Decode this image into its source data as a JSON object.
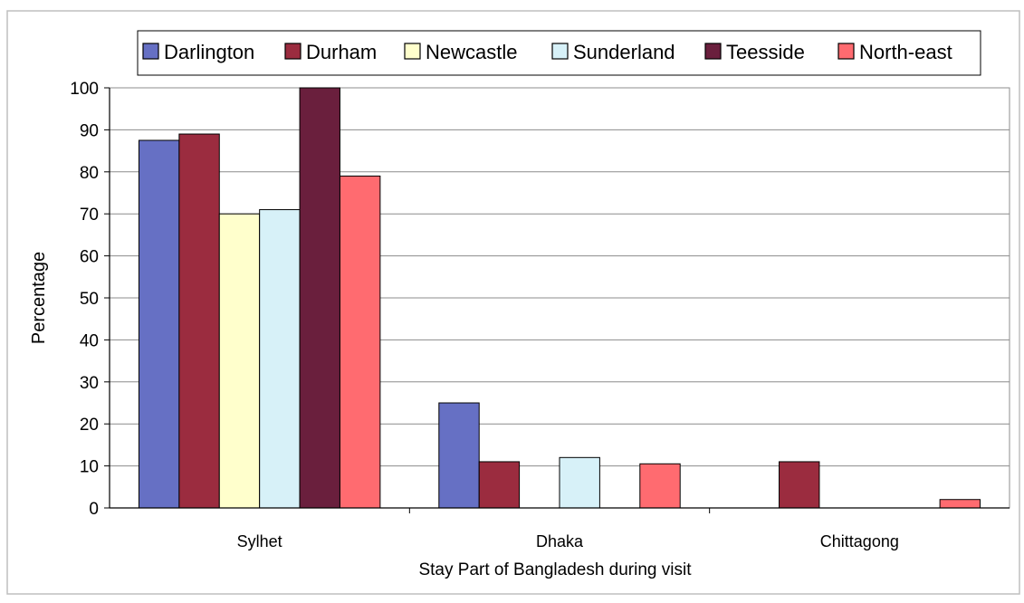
{
  "chart_data": {
    "type": "bar",
    "title": "",
    "xlabel": "Stay Part of Bangladesh during visit",
    "ylabel": "Percentage",
    "ylim": [
      0,
      100
    ],
    "yticks": [
      0,
      10,
      20,
      30,
      40,
      50,
      60,
      70,
      80,
      90,
      100
    ],
    "grid": true,
    "legend_position": "top",
    "categories": [
      "Sylhet",
      "Dhaka",
      "Chittagong"
    ],
    "series": [
      {
        "name": "Darlington",
        "color": "#6670c4",
        "values": [
          87.5,
          25,
          0
        ]
      },
      {
        "name": "Durham",
        "color": "#9b2c3f",
        "values": [
          89,
          11,
          11
        ]
      },
      {
        "name": "Newcastle",
        "color": "#ffffcc",
        "values": [
          70,
          0,
          0
        ]
      },
      {
        "name": "Sunderland",
        "color": "#d7f1f8",
        "values": [
          71,
          12,
          0
        ]
      },
      {
        "name": "Teesside",
        "color": "#6a1f3d",
        "values": [
          100,
          0,
          0
        ]
      },
      {
        "name": "North-east",
        "color": "#ff6b70",
        "values": [
          79,
          10.5,
          2
        ]
      }
    ]
  }
}
